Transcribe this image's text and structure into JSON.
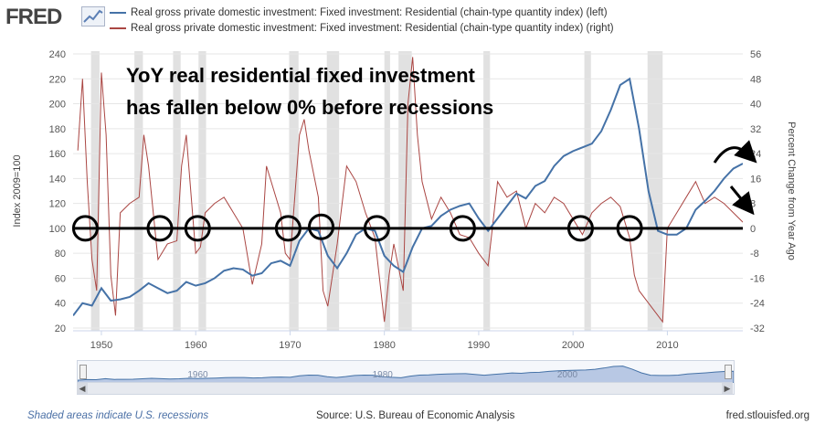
{
  "header": {
    "logo_text": "FRED",
    "legend": [
      {
        "label": "Real gross private domestic investment: Fixed investment: Residential (chain-type quantity index) (left)",
        "color": "#4572a7"
      },
      {
        "label": "Real gross private domestic investment: Fixed investment: Residential (chain-type quantity index) (right)",
        "color": "#aa4643"
      }
    ]
  },
  "footer": {
    "recession_note": "Shaded areas indicate U.S. recessions",
    "source": "Source: U.S. Bureau of Economic Analysis",
    "site": "fred.stlouisfed.org"
  },
  "navigator": {
    "tick_labels": [
      "1960",
      "1980",
      "2000"
    ]
  },
  "chart_data": {
    "type": "line",
    "annotation_lines": [
      "YoY real residential fixed investment",
      "has fallen below 0% before recessions"
    ],
    "left_axis": {
      "label": "Index 2009=100",
      "ticks": [
        20,
        40,
        60,
        80,
        100,
        120,
        140,
        160,
        180,
        200,
        220,
        240
      ],
      "ylim": [
        20,
        240
      ]
    },
    "right_axis": {
      "label": "Percent Change from Year Ago",
      "ticks": [
        -32,
        -24,
        -16,
        -8,
        0,
        8,
        16,
        24,
        32,
        40,
        48,
        56
      ],
      "ylim": [
        -32,
        56
      ]
    },
    "x_axis": {
      "ticks": [
        1950,
        1960,
        1970,
        1980,
        1990,
        2000,
        2010
      ],
      "xlim": [
        1947,
        2018
      ]
    },
    "recessions": [
      [
        1948.9,
        1949.8
      ],
      [
        1953.5,
        1954.4
      ],
      [
        1957.6,
        1958.4
      ],
      [
        1960.3,
        1961.1
      ],
      [
        1969.9,
        1970.9
      ],
      [
        1973.9,
        1975.2
      ],
      [
        1980.0,
        1980.6
      ],
      [
        1981.5,
        1982.9
      ],
      [
        1990.5,
        1991.2
      ],
      [
        2001.2,
        2001.9
      ],
      [
        2007.9,
        2009.5
      ]
    ],
    "reference_line_y_right": 0,
    "circled_points": [
      [
        1948.3,
        0
      ],
      [
        1956.2,
        0
      ],
      [
        1960.2,
        0
      ],
      [
        1969.8,
        0
      ],
      [
        1973.3,
        0.5
      ],
      [
        1979.2,
        0
      ],
      [
        1988.3,
        0
      ],
      [
        2000.8,
        0
      ],
      [
        2006.0,
        0
      ]
    ],
    "trend_arrows": [
      "up",
      "down"
    ],
    "series": [
      {
        "name": "Real gross private domestic investment: Fixed investment: Residential (chain-type quantity index) (left)",
        "axis": "left",
        "color": "#4572a7",
        "x": [
          1947,
          1948,
          1949,
          1950,
          1951,
          1952,
          1953,
          1954,
          1955,
          1956,
          1957,
          1958,
          1959,
          1960,
          1961,
          1962,
          1963,
          1964,
          1965,
          1966,
          1967,
          1968,
          1969,
          1970,
          1971,
          1972,
          1973,
          1974,
          1975,
          1976,
          1977,
          1978,
          1979,
          1980,
          1981,
          1982,
          1983,
          1984,
          1985,
          1986,
          1987,
          1988,
          1989,
          1990,
          1991,
          1992,
          1993,
          1994,
          1995,
          1996,
          1997,
          1998,
          1999,
          2000,
          2001,
          2002,
          2003,
          2004,
          2005,
          2006,
          2007,
          2008,
          2009,
          2010,
          2011,
          2012,
          2013,
          2014,
          2015,
          2016,
          2017,
          2018
        ],
        "y": [
          30,
          40,
          38,
          52,
          42,
          43,
          45,
          50,
          56,
          52,
          48,
          50,
          57,
          54,
          56,
          60,
          66,
          68,
          67,
          62,
          64,
          72,
          74,
          70,
          90,
          100,
          98,
          78,
          68,
          80,
          95,
          100,
          98,
          78,
          70,
          65,
          85,
          100,
          102,
          110,
          115,
          118,
          120,
          108,
          98,
          108,
          118,
          128,
          124,
          134,
          138,
          150,
          158,
          162,
          165,
          168,
          178,
          195,
          215,
          220,
          180,
          130,
          98,
          95,
          95,
          100,
          115,
          122,
          130,
          140,
          148,
          152
        ]
      },
      {
        "name": "Real gross private domestic investment: Fixed investment: Residential (chain-type quantity index) (right)",
        "axis": "right",
        "color": "#aa4643",
        "x": [
          1947.5,
          1948,
          1948.5,
          1949,
          1949.5,
          1950,
          1950.5,
          1951,
          1951.5,
          1952,
          1953,
          1954,
          1954.5,
          1955,
          1956,
          1957,
          1958,
          1958.5,
          1959,
          1960,
          1960.5,
          1961,
          1962,
          1963,
          1964,
          1965,
          1966,
          1967,
          1967.5,
          1968,
          1969,
          1969.5,
          1970,
          1971,
          1971.5,
          1972,
          1973,
          1973.5,
          1974,
          1974.5,
          1975,
          1976,
          1977,
          1978,
          1979,
          1980,
          1980.5,
          1981,
          1982,
          1982.5,
          1983,
          1983.5,
          1984,
          1985,
          1986,
          1987,
          1988,
          1989,
          1990,
          1991,
          1992,
          1993,
          1994,
          1995,
          1996,
          1997,
          1998,
          1999,
          2000,
          2001,
          2002,
          2003,
          2004,
          2005,
          2006,
          2006.5,
          2007,
          2008,
          2009,
          2009.5,
          2010,
          2011,
          2012,
          2013,
          2014,
          2015,
          2016,
          2017,
          2018
        ],
        "y": [
          25,
          48,
          15,
          -10,
          -20,
          50,
          30,
          -15,
          -28,
          5,
          8,
          10,
          30,
          20,
          -10,
          -5,
          -4,
          20,
          30,
          -8,
          -6,
          5,
          8,
          10,
          5,
          0,
          -18,
          -5,
          20,
          15,
          5,
          -8,
          -10,
          30,
          35,
          25,
          10,
          -20,
          -25,
          -15,
          -5,
          20,
          15,
          5,
          -3,
          -30,
          -15,
          -5,
          -20,
          40,
          55,
          30,
          15,
          3,
          10,
          5,
          -2,
          -3,
          -8,
          -12,
          15,
          10,
          12,
          0,
          8,
          5,
          10,
          8,
          3,
          -2,
          5,
          8,
          10,
          7,
          -3,
          -15,
          -20,
          -24,
          -28,
          -30,
          0,
          5,
          10,
          15,
          8,
          10,
          8,
          5,
          2
        ]
      }
    ]
  }
}
